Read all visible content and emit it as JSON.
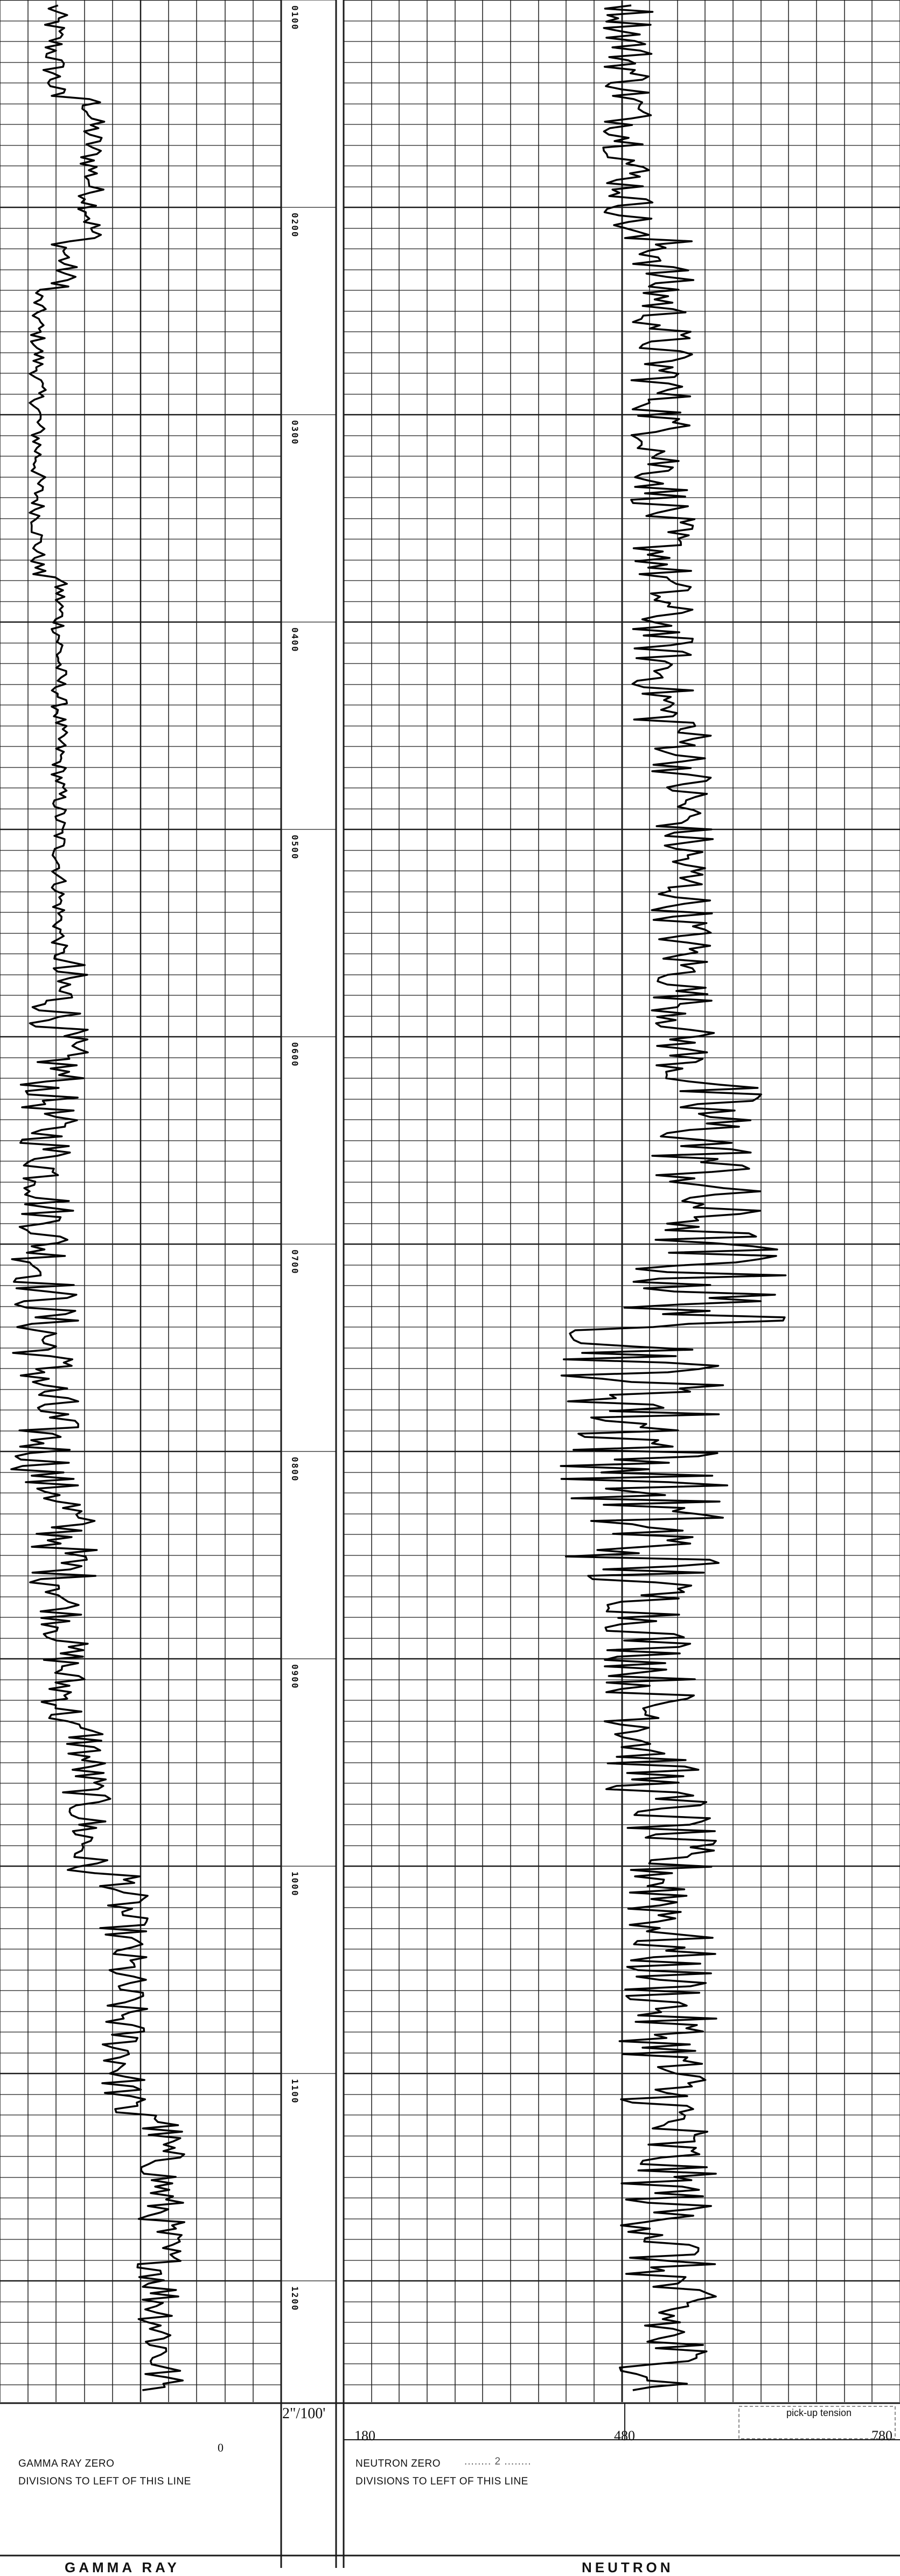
{
  "log": {
    "depth_labels": [
      "0100",
      "0200",
      "0300",
      "0400",
      "0500",
      "0600",
      "0700",
      "0800",
      "0900",
      "1000",
      "1100",
      "1200"
    ],
    "scale_label": "2\"/100'",
    "neutron_scale": {
      "left": "180",
      "mid": "480",
      "right": "780"
    },
    "pickup_tension_label": "pick-up tension"
  },
  "footer": {
    "gamma_zero_label": "GAMMA RAY ZERO",
    "gamma_zero_value": "0",
    "gamma_divisions_label": "DIVISIONS TO LEFT OF THIS LINE",
    "neutron_zero_label": "NEUTRON ZERO",
    "neutron_zero_value": "........ 2 ........",
    "neutron_divisions_label": "DIVISIONS TO LEFT OF THIS LINE",
    "gamma_title": "GAMMA RAY",
    "neutron_title": "NEUTRON"
  },
  "colors": {
    "grid": "#1a1a1a",
    "trace": "#000000",
    "paper": "#ffffff"
  }
}
